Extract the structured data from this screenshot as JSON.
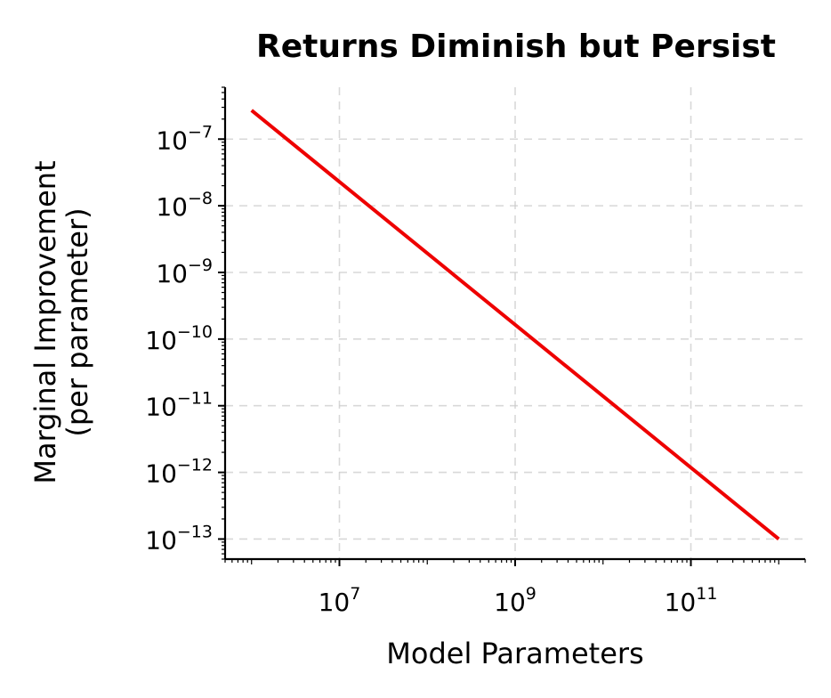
{
  "chart_data": {
    "type": "line",
    "title": "Returns Diminish but Persist",
    "xlabel": "Model Parameters",
    "ylabel_lines": [
      "Marginal Improvement",
      "(per parameter)"
    ],
    "x_scale": "log",
    "y_scale": "log",
    "xlim": [
      500000,
      2000000000000
    ],
    "ylim": [
      5e-14,
      6e-07
    ],
    "x_ticks": [
      {
        "value": 10000000,
        "base": "10",
        "exp": "7"
      },
      {
        "value": 1000000000,
        "base": "10",
        "exp": "9"
      },
      {
        "value": 100000000000,
        "base": "10",
        "exp": "11"
      }
    ],
    "y_ticks": [
      {
        "value": 1e-07,
        "base": "10",
        "exp": "−7"
      },
      {
        "value": 1e-08,
        "base": "10",
        "exp": "−8"
      },
      {
        "value": 1e-09,
        "base": "10",
        "exp": "−9"
      },
      {
        "value": 1e-10,
        "base": "10",
        "exp": "−10"
      },
      {
        "value": 1e-11,
        "base": "10",
        "exp": "−11"
      },
      {
        "value": 1e-12,
        "base": "10",
        "exp": "−12"
      },
      {
        "value": 1e-13,
        "base": "10",
        "exp": "−13"
      }
    ],
    "grid": true,
    "series": [
      {
        "color": "#ee0000",
        "x": [
          1000000,
          1000000000000
        ],
        "y": [
          2.7e-07,
          1e-13
        ]
      }
    ]
  }
}
